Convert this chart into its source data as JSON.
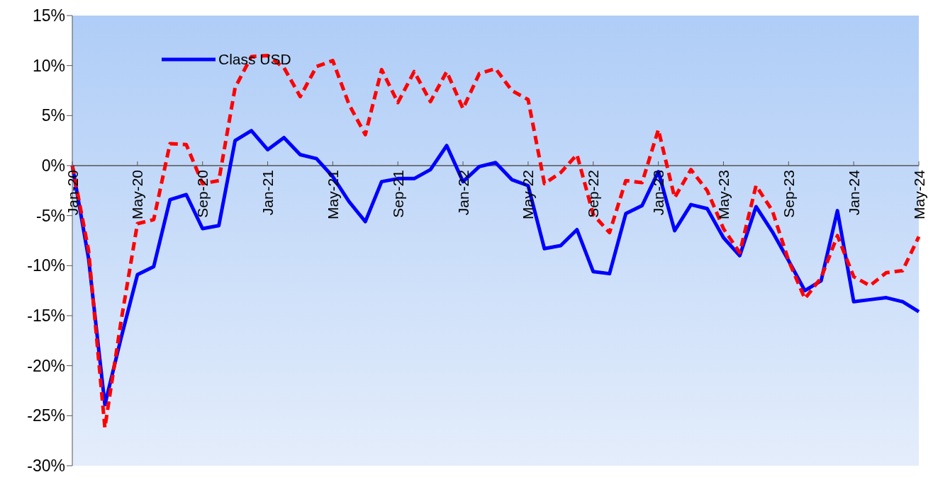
{
  "chart_data": {
    "type": "line",
    "categories": [
      "Jan-20",
      null,
      null,
      null,
      "May-20",
      null,
      null,
      null,
      "Sep-20",
      null,
      null,
      null,
      "Jan-21",
      null,
      null,
      null,
      "May-21",
      null,
      null,
      null,
      "Sep-21",
      null,
      null,
      null,
      "Jan-22",
      null,
      null,
      null,
      "May-22",
      null,
      null,
      null,
      "Sep-22",
      null,
      null,
      null,
      "Jan-23",
      null,
      null,
      null,
      "May-23",
      null,
      null,
      null,
      "Sep-23",
      null,
      null,
      null,
      "Jan-24",
      null,
      null,
      null,
      "May-24"
    ],
    "series": [
      {
        "name": "Class USD",
        "color": "#0000ff",
        "line_style": "solid",
        "values": [
          0,
          -9.3,
          -23.9,
          -17.2,
          -10.9,
          -10.1,
          -3.4,
          -2.9,
          -6.3,
          -6.0,
          2.5,
          3.5,
          1.6,
          2.8,
          1.1,
          0.7,
          -1.1,
          -3.6,
          -5.6,
          -1.6,
          -1.3,
          -1.3,
          -0.4,
          2.0,
          -1.6,
          -0.1,
          0.3,
          -1.4,
          -2.0,
          -8.3,
          -8.0,
          -6.4,
          -10.6,
          -10.8,
          -4.8,
          -4.0,
          -0.6,
          -6.5,
          -3.9,
          -4.3,
          -7.2,
          -9.0,
          -4.1,
          -6.6,
          -9.5,
          -12.5,
          -11.5,
          -4.5,
          -13.6,
          -13.4,
          -13.2,
          -13.6,
          -14.6
        ]
      },
      {
        "color": "#ff0000",
        "line_style": "dashed",
        "values": [
          0,
          -8.5,
          -26.2,
          -15.5,
          -5.8,
          -5.4,
          2.2,
          2.1,
          -1.8,
          -1.5,
          7.8,
          10.9,
          11.0,
          9.8,
          6.9,
          9.9,
          10.5,
          6.1,
          3.1,
          9.6,
          6.3,
          9.4,
          6.4,
          9.4,
          5.7,
          9.2,
          9.7,
          7.5,
          6.6,
          -1.8,
          -0.7,
          1.1,
          -4.9,
          -6.7,
          -1.5,
          -1.7,
          3.6,
          -3.2,
          -0.4,
          -2.5,
          -6.3,
          -8.7,
          -2.0,
          -4.5,
          -9.5,
          -13.3,
          -11.2,
          -7.0,
          -11.1,
          -12.0,
          -10.7,
          -10.5,
          -7.1
        ]
      }
    ],
    "ylim": [
      -30,
      15
    ],
    "yticks": [
      {
        "value": -30,
        "label": "-30%"
      },
      {
        "value": -25,
        "label": "-25%"
      },
      {
        "value": -20,
        "label": "-20%"
      },
      {
        "value": -15,
        "label": "-15%"
      },
      {
        "value": -10,
        "label": "-10%"
      },
      {
        "value": -5,
        "label": "-5%"
      },
      {
        "value": 0,
        "label": "0%"
      },
      {
        "value": 5,
        "label": "5%"
      },
      {
        "value": 10,
        "label": "10%"
      },
      {
        "value": 15,
        "label": "15%"
      }
    ],
    "legend": "top left",
    "marker": "none"
  }
}
